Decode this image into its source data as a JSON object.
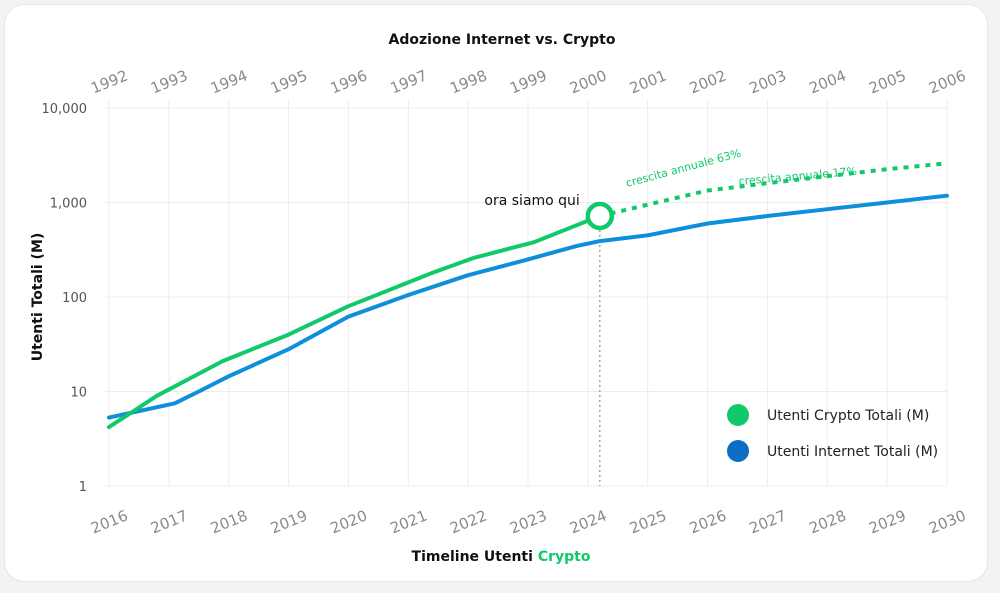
{
  "chart_data": {
    "type": "line",
    "title": "Adozione Internet vs. Crypto",
    "xlabel": {
      "prefix": "Timeline Utenti ",
      "highlight": "Crypto"
    },
    "ylabel": "Utenti Totali (M)",
    "yscale": "log",
    "ylim": [
      1,
      10000
    ],
    "yticks": [
      "1",
      "10",
      "100",
      "1,000",
      "10,000"
    ],
    "yticks_values": [
      1,
      10,
      100,
      1000,
      10000
    ],
    "x_bottom": [
      "2016",
      "2017",
      "2018",
      "2019",
      "2020",
      "2021",
      "2022",
      "2023",
      "2024",
      "2025",
      "2026",
      "2027",
      "2028",
      "2029",
      "2030"
    ],
    "x_top": [
      "1992",
      "1993",
      "1994",
      "1995",
      "1996",
      "1997",
      "1998",
      "1999",
      "2000",
      "2001",
      "2002",
      "2003",
      "2004",
      "2005",
      "2006"
    ],
    "xlim": [
      2016,
      2030
    ],
    "grid": true,
    "series": [
      {
        "name": "Utenti Crypto Totali (M)",
        "color": "#10c96b",
        "x": [
          2016,
          2016.8,
          2017.9,
          2019,
          2020,
          2021.4,
          2022.1,
          2023.1,
          2024.2
        ],
        "y": [
          4.2,
          9,
          21,
          40,
          80,
          180,
          260,
          380,
          720
        ],
        "projection": {
          "x": [
            2024.2,
            2026,
            2027,
            2028,
            2029,
            2030
          ],
          "y": [
            720,
            1340,
            1600,
            1900,
            2250,
            2600
          ],
          "style": "dotted"
        }
      },
      {
        "name": "Utenti Internet Totali (M)",
        "color": "#0d8fdc",
        "x": [
          2016,
          2017.1,
          2017.5,
          2018,
          2019,
          2020,
          2021,
          2022,
          2023,
          2023.8,
          2024.2,
          2025,
          2026,
          2027,
          2028,
          2029,
          2030
        ],
        "y": [
          5.3,
          7.5,
          10,
          14.5,
          28,
          62,
          105,
          170,
          250,
          345,
          390,
          450,
          600,
          720,
          850,
          1000,
          1180
        ]
      }
    ],
    "annotations": [
      {
        "text": "ora siamo qui",
        "x": 2024.2,
        "y": 720,
        "marker": "circle"
      },
      {
        "text": "crescita annuale 63%",
        "x": 2024.2,
        "y": 720
      },
      {
        "text": "crescita annuale 17%",
        "x": 2026.5,
        "y": 1000
      }
    ],
    "vline": {
      "x": 2024.2,
      "style": "dotted"
    },
    "legend": {
      "position": "bottom-right",
      "items": [
        {
          "label": "Utenti Crypto Totali (M)",
          "color": "#10c96b"
        },
        {
          "label": "Utenti Internet Totali (M)",
          "color": "#0a6fc2"
        }
      ]
    }
  }
}
